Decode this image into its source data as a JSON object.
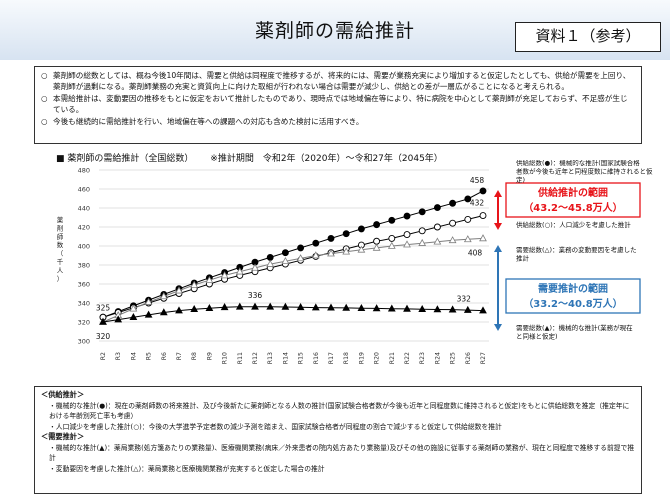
{
  "header": {
    "title": "薬剤師の需給推計",
    "doc_label": "資料１（参考）"
  },
  "summary": {
    "items": [
      "薬剤師の総数としては、概ね今後10年間は、需要と供給は同程度で推移するが、将来的には、需要が業務充実により増加すると仮定したとしても、供給が需要を上回り、薬剤師が過剰になる。薬剤師業務の充実と資質向上に向けた取組が行われない場合は需要が減少し、供給との差が一層広がることになると考えられる。",
      "本需給推計は、変動要因の推移をもとに仮定をおいて推計したものであり、現時点では地域偏在等により、特に病院を中心として薬剤師が充足しておらず、不足感が生じている。",
      "今後も継続的に需給推計を行い、地域偏在等への課題への対応も含めた検討に活用すべき。"
    ],
    "mark": "○"
  },
  "chart_title": {
    "marker": "■",
    "text": "薬剤師の需給推計（全国総数）",
    "period": "※推計期間　令和2年（2020年）～令和27年（2045年）"
  },
  "chart_data": {
    "type": "line",
    "categories": [
      "R2",
      "R3",
      "R4",
      "R5",
      "R6",
      "R7",
      "R8",
      "R9",
      "R10",
      "R11",
      "R12",
      "R13",
      "R14",
      "R15",
      "R16",
      "R17",
      "R18",
      "R19",
      "R20",
      "R21",
      "R22",
      "R23",
      "R24",
      "R25",
      "R26",
      "R27"
    ],
    "ylim": [
      300,
      480
    ],
    "yticks": [
      300,
      320,
      340,
      360,
      380,
      400,
      420,
      440,
      460,
      480
    ],
    "ylabel": "薬剤師数（千人）",
    "series": [
      {
        "values": [
          325,
          331,
          337,
          343,
          349,
          355,
          361,
          366.5,
          372,
          377.5,
          383,
          388,
          393,
          398,
          403,
          408,
          413,
          418,
          422.5,
          427,
          431.5,
          436,
          440.5,
          445,
          449.5,
          458
        ]
      },
      {
        "values": [
          325,
          330,
          335,
          340,
          345,
          350,
          355,
          360,
          365,
          369,
          373,
          377,
          381,
          385,
          389,
          393,
          397,
          401,
          405,
          408,
          412,
          416,
          420,
          424,
          428,
          432
        ]
      },
      {
        "values": [
          320,
          327,
          334,
          341,
          347,
          353,
          359,
          364,
          369,
          373,
          377,
          381,
          384,
          387,
          390,
          392,
          394,
          396,
          398,
          400,
          401.5,
          403,
          404.5,
          406,
          407,
          408
        ]
      },
      {
        "values": [
          320,
          322.5,
          325,
          327.5,
          330,
          332,
          333.5,
          334.5,
          335.5,
          336,
          336,
          336,
          335.8,
          335.5,
          335.2,
          335,
          334.8,
          334.5,
          334.3,
          334,
          333.8,
          333.5,
          333.2,
          333,
          332.5,
          332
        ]
      }
    ],
    "data_labels": [
      {
        "text": "325",
        "x": "R2",
        "y": 325
      },
      {
        "text": "320",
        "x": "R2",
        "y": 320
      },
      {
        "text": "336",
        "x": "R12",
        "y": 336
      },
      {
        "text": "458",
        "x": "R27",
        "y": 458
      },
      {
        "text": "432",
        "x": "R27",
        "y": 432
      },
      {
        "text": "408",
        "x": "R27",
        "y": 408
      },
      {
        "text": "332",
        "x": "R26",
        "y": 332
      }
    ],
    "annotations": {
      "supply_high": "供給総数(●)：機械的な推計(国家試験合格者数が今後も近年と同程度数に維持されると仮定)",
      "supply_low": "供給総数(○)：人口減少を考慮した推計",
      "demand_high": "需要総数(△)：業務の変動要因を考慮した推計",
      "demand_low": "需要総数(▲)：機械的な推計(業務が現在と同様と仮定)"
    },
    "ranges": {
      "supply_title": "供給推計の範囲",
      "supply_value": "（43.2～45.8万人）",
      "demand_title": "需要推計の範囲",
      "demand_value": "（33.2～40.8万人）"
    },
    "colors": {
      "supply": "#e8141a",
      "demand": "#2e75b6",
      "line": "#000000"
    }
  },
  "notes": {
    "supply_heading": "＜供給推計＞",
    "supply_items": [
      "・機械的な推計(●)：現在の薬剤師数の将来推計、及び今後新たに薬剤師となる人数の推計(国家試験合格者数が今後も近年と同程度数に維持されると仮定)をもとに供給総数を推定（推定年における年齢別死亡率も考慮）",
      "・人口減少を考慮した推計(○)：今後の大学進学予定者数の減少予測を踏まえ、国家試験合格者が同程度の割合で減少すると仮定して供給総数を推計"
    ],
    "demand_heading": "＜需要推計＞",
    "demand_items": [
      "・機械的な推計(▲)：薬局業務(処方箋あたりの業務量)、医療機関業務(病床／外来患者の院内処方あたり業務量)及びその他の施設に従事する薬剤師の業務が、現在と同程度で推移する前提で推計",
      "・変動要因を考慮した推計(△)：薬局業務と医療機関業務が充実すると仮定した場合の推計"
    ]
  }
}
